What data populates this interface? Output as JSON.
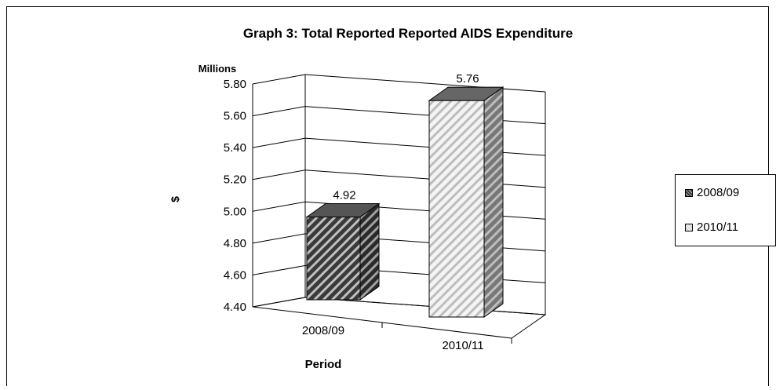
{
  "chart_data": {
    "type": "bar",
    "title": "Graph 3: Total Reported Reported AIDS Expenditure",
    "unit_label": "Millions",
    "ylabel": "$",
    "xlabel": "Period",
    "categories": [
      "2008/09",
      "2010/11"
    ],
    "values": [
      4.92,
      5.76
    ],
    "data_labels": [
      "4.92",
      "5.76"
    ],
    "ylim": [
      4.4,
      5.8
    ],
    "yticks": [
      "4.40",
      "4.60",
      "4.80",
      "5.00",
      "5.20",
      "5.40",
      "5.60",
      "5.80"
    ],
    "legend": [
      "2008/09",
      "2010/11"
    ],
    "legend_position": "right",
    "grid": true,
    "style": "3d-clustered-column",
    "colors": {
      "dark_bar": "#3a3a3a",
      "light_bar": "#f2f2f2",
      "stripe": "#bfbfbf"
    }
  }
}
